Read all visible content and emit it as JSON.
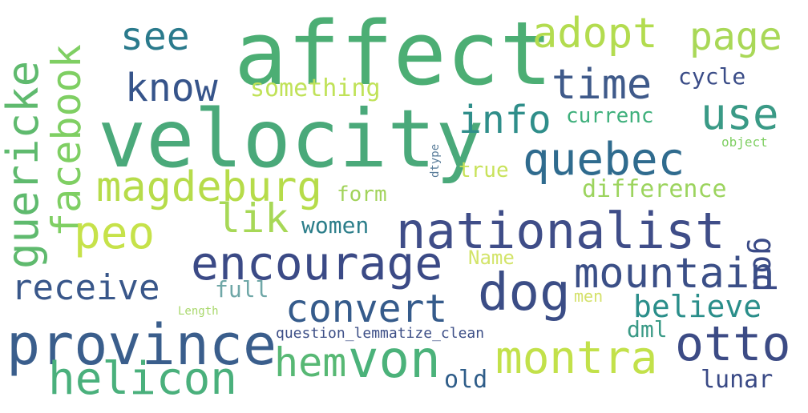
{
  "cloud": {
    "words": [
      {
        "id": "affect",
        "text": "affect",
        "color": "#4cae74"
      },
      {
        "id": "velocity",
        "text": "velocity",
        "color": "#4aa97a"
      },
      {
        "id": "nationalist",
        "text": "nationalist",
        "color": "#3f4d88"
      },
      {
        "id": "province",
        "text": "province",
        "color": "#3a5e8c"
      },
      {
        "id": "encourage",
        "text": "encourage",
        "color": "#3b4a86"
      },
      {
        "id": "facebook",
        "text": "facebook",
        "color": "#7fcf63"
      },
      {
        "id": "guericke",
        "text": "guericke",
        "color": "#5fba6e"
      },
      {
        "id": "magdeburg",
        "text": "magdeburg",
        "color": "#b6dc4a"
      },
      {
        "id": "quebec",
        "text": "quebec",
        "color": "#2f6b8e"
      },
      {
        "id": "mountain",
        "text": "mountain",
        "color": "#3b4f87"
      },
      {
        "id": "montra",
        "text": "montra",
        "color": "#c2e14a"
      },
      {
        "id": "helicon",
        "text": "helicon",
        "color": "#4ab07c"
      },
      {
        "id": "von",
        "text": "von",
        "color": "#4bb27a"
      },
      {
        "id": "hem",
        "text": "hem",
        "color": "#57b874"
      },
      {
        "id": "dog",
        "text": "dog",
        "color": "#3b4d86"
      },
      {
        "id": "otto",
        "text": "otto",
        "color": "#3c4b85"
      },
      {
        "id": "convert",
        "text": "convert",
        "color": "#355b8b"
      },
      {
        "id": "receive",
        "text": "receive",
        "color": "#39578a"
      },
      {
        "id": "adopt",
        "text": "adopt",
        "color": "#b3dc4f"
      },
      {
        "id": "page",
        "text": "page",
        "color": "#a9d857"
      },
      {
        "id": "time",
        "text": "time",
        "color": "#3f5a8a"
      },
      {
        "id": "use",
        "text": "use",
        "color": "#3a9a86"
      },
      {
        "id": "info",
        "text": "info",
        "color": "#2f8e8a"
      },
      {
        "id": "see",
        "text": "see",
        "color": "#2a7a8c"
      },
      {
        "id": "know",
        "text": "know",
        "color": "#36548a"
      },
      {
        "id": "peo",
        "text": "peo",
        "color": "#c6e24a"
      },
      {
        "id": "lik",
        "text": "lik",
        "color": "#a7d857"
      },
      {
        "id": "god",
        "text": "god",
        "color": "#3a4a86"
      },
      {
        "id": "believe",
        "text": "believe",
        "color": "#2a8e8a"
      },
      {
        "id": "something",
        "text": "something",
        "color": "#c0e258"
      },
      {
        "id": "cycle",
        "text": "cycle",
        "color": "#3a4c87"
      },
      {
        "id": "currenc",
        "text": "currenc",
        "color": "#3fb07c"
      },
      {
        "id": "difference",
        "text": "difference",
        "color": "#9cd45e"
      },
      {
        "id": "true",
        "text": "true",
        "color": "#c8e25a"
      },
      {
        "id": "form",
        "text": "form",
        "color": "#a2d35b"
      },
      {
        "id": "women",
        "text": "women",
        "color": "#2c7e8a"
      },
      {
        "id": "name",
        "text": "Name",
        "color": "#d3e46a"
      },
      {
        "id": "full",
        "text": "full",
        "color": "#6fa7a7"
      },
      {
        "id": "men",
        "text": "men",
        "color": "#d4e16a"
      },
      {
        "id": "length",
        "text": "Length",
        "color": "#a9d86c"
      },
      {
        "id": "question",
        "text": "question_lemmatize_clean",
        "color": "#3d4f87"
      },
      {
        "id": "dml",
        "text": "dml",
        "color": "#3a9a86"
      },
      {
        "id": "old",
        "text": "old",
        "color": "#2f5d89"
      },
      {
        "id": "lunar",
        "text": "lunar",
        "color": "#3a4a86"
      },
      {
        "id": "object",
        "text": "object",
        "color": "#7fcf63"
      },
      {
        "id": "dtype",
        "text": "dtype",
        "color": "#5a7d9a"
      }
    ]
  }
}
